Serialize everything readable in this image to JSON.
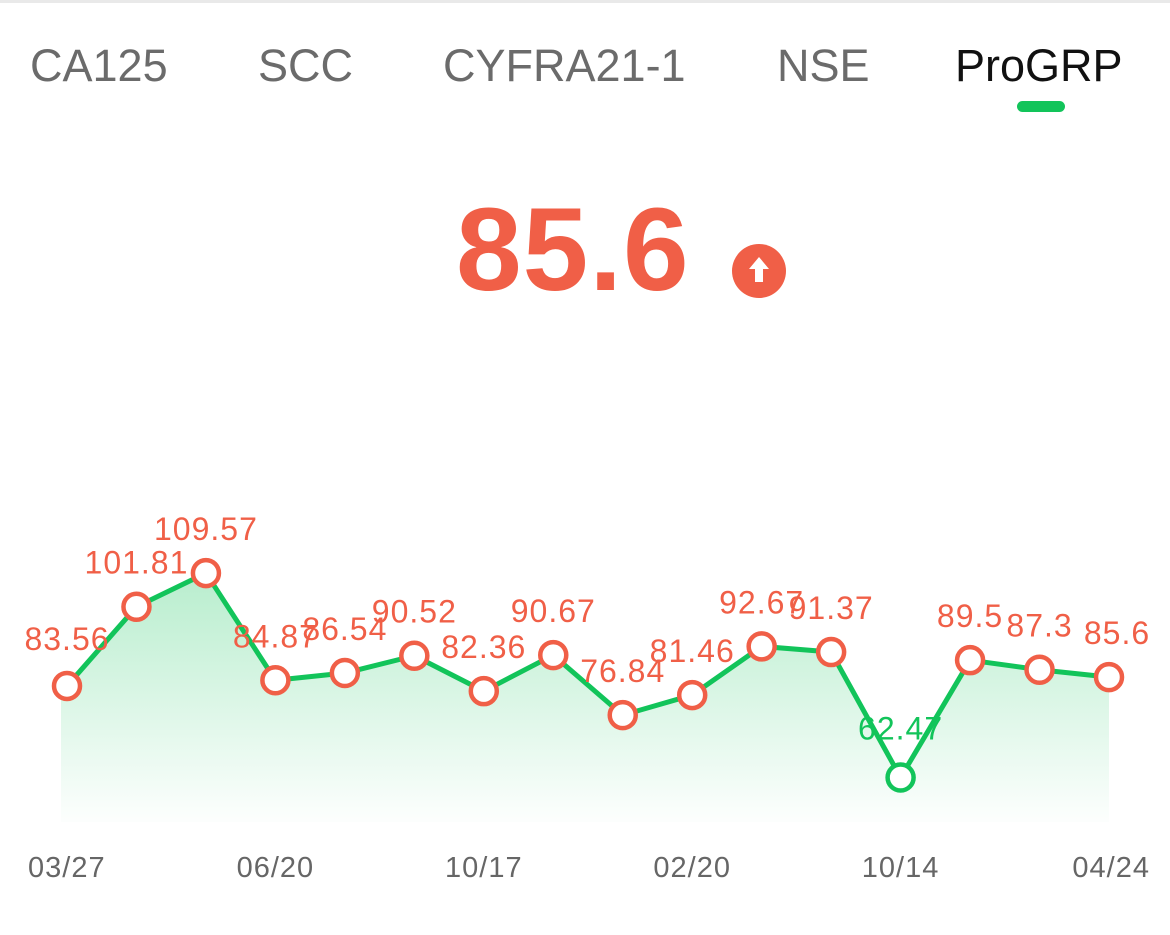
{
  "tabs": [
    {
      "label": "CA125",
      "active": false
    },
    {
      "label": "SCC",
      "active": false
    },
    {
      "label": "CYFRA21-1",
      "active": false
    },
    {
      "label": "NSE",
      "active": false
    },
    {
      "label": "ProGRP",
      "active": true
    }
  ],
  "current": {
    "value": "85.6",
    "trend_icon": "arrow-up-icon",
    "color": "#f05f47"
  },
  "colors": {
    "accent": "#12c45a",
    "high": "#f05f47",
    "normal": "#12c45a"
  },
  "chart_data": {
    "type": "area",
    "x_tick_labels": [
      "03/27",
      "06/20",
      "10/17",
      "02/20",
      "10/14",
      "04/24"
    ],
    "values": [
      83.56,
      101.81,
      109.57,
      84.87,
      86.54,
      90.52,
      82.36,
      90.67,
      76.84,
      81.46,
      92.67,
      91.37,
      62.47,
      89.5,
      87.3,
      85.6
    ],
    "labels": [
      "83.56",
      "101.81",
      "109.57",
      "84.87",
      "86.54",
      "90.52",
      "82.36",
      "90.67",
      "76.84",
      "81.46",
      "92.67",
      "91.37",
      "62.47",
      "89.5",
      "87.3",
      "85.6"
    ],
    "point_status": [
      "high",
      "high",
      "high",
      "high",
      "high",
      "high",
      "high",
      "high",
      "high",
      "high",
      "high",
      "high",
      "normal",
      "high",
      "high",
      "high"
    ],
    "grid": false,
    "legend": "none"
  }
}
